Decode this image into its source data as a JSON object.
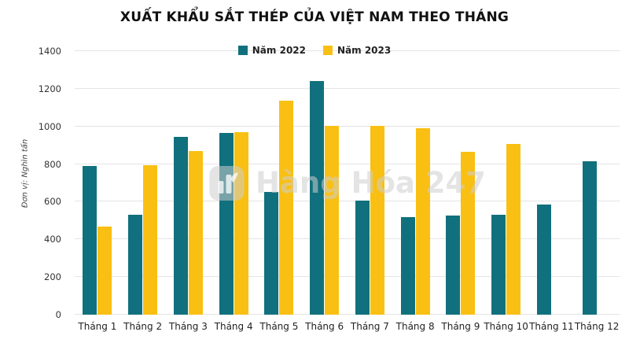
{
  "chart": {
    "watermark_text": "Hàng Hóa 247",
    "background_color": "#ffffff",
    "grid_color": "#e4e4e4"
  },
  "chart_data": {
    "type": "bar",
    "title": "XUẤT KHẨU SẮT THÉP CỦA VIỆT NAM THEO THÁNG",
    "ylabel": "Đơn vị: Nghìn tấn",
    "categories": [
      "Tháng 1",
      "Tháng 2",
      "Tháng 3",
      "Tháng 4",
      "Tháng 5",
      "Tháng 6",
      "Tháng 7",
      "Tháng 8",
      "Tháng 9",
      "Tháng 10",
      "Tháng 11",
      "Tháng 12"
    ],
    "series": [
      {
        "name": "Năm 2022",
        "color": "#11707d",
        "values": [
          790,
          530,
          945,
          965,
          650,
          1240,
          605,
          520,
          525,
          530,
          585,
          815
        ]
      },
      {
        "name": "Năm 2023",
        "color": "#f9c013",
        "values": [
          470,
          795,
          870,
          970,
          1135,
          1005,
          1005,
          990,
          865,
          905,
          null,
          null
        ]
      }
    ],
    "ylim": [
      0,
      1400
    ],
    "ytick_step": 200,
    "grid": true,
    "legend_position": "top-center"
  }
}
